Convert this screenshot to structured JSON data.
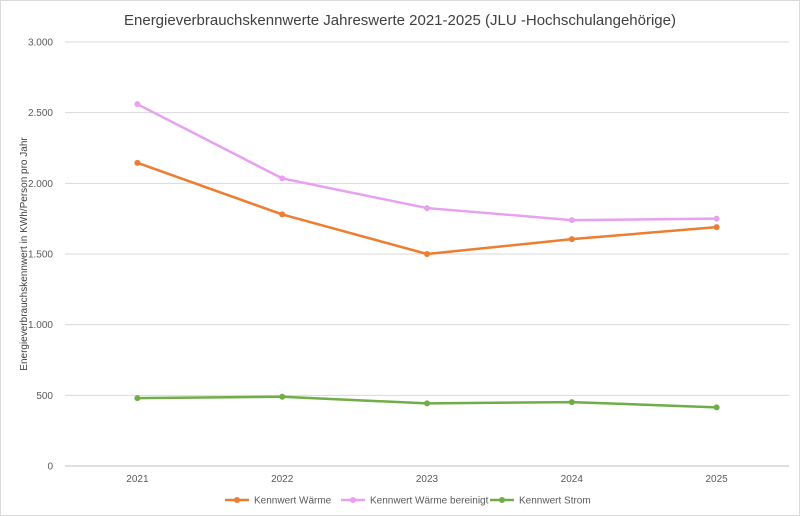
{
  "chart_data": {
    "type": "line",
    "title": "Energieverbrauchskennwerte  Jahreswerte 2021-2025 (JLU -Hochschulangehörige)",
    "xlabel": "",
    "ylabel": "Energieverbrauchskennwert  in KWh/Person pro Jahr",
    "categories": [
      "2021",
      "2022",
      "2023",
      "2024",
      "2025"
    ],
    "ylim": [
      0,
      3000
    ],
    "yticks": [
      0,
      500,
      1000,
      1500,
      2000,
      2500,
      3000
    ],
    "ytick_labels": [
      "0",
      "500",
      "1.000",
      "1.500",
      "2.000",
      "2.500",
      "3.000"
    ],
    "grid": "horizontal",
    "legend_position": "bottom",
    "series": [
      {
        "name": "Kennwert Wärme",
        "color": "#ed7d31",
        "values": [
          2145,
          1780,
          1500,
          1605,
          1690
        ]
      },
      {
        "name": "Kennwert Wärme bereinigt",
        "color": "#e8a1f0",
        "values": [
          2560,
          2035,
          1825,
          1740,
          1750
        ]
      },
      {
        "name": "Kennwert Strom",
        "color": "#70ad47",
        "values": [
          480,
          490,
          443,
          452,
          415
        ]
      }
    ]
  }
}
